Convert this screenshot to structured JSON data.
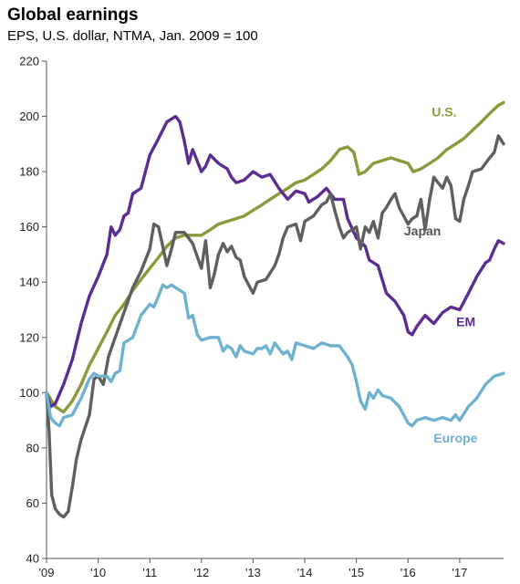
{
  "chart_data": {
    "type": "line",
    "title": "Global earnings",
    "subtitle": "EPS, U.S. dollar, NTMA, Jan. 2009 = 100",
    "xlabel": "",
    "ylabel": "",
    "xlim": [
      2009,
      2017.85
    ],
    "ylim": [
      40,
      220
    ],
    "y_ticks": [
      40,
      60,
      80,
      100,
      120,
      140,
      160,
      180,
      200,
      220
    ],
    "x_ticks": [
      {
        "value": 2009,
        "label": "'09"
      },
      {
        "value": 2010,
        "label": "'10"
      },
      {
        "value": 2011,
        "label": "'11"
      },
      {
        "value": 2012,
        "label": "'12"
      },
      {
        "value": 2013,
        "label": "'13"
      },
      {
        "value": 2014,
        "label": "'14"
      },
      {
        "value": 2015,
        "label": "'15"
      },
      {
        "value": 2016,
        "label": "'16"
      },
      {
        "value": 2017,
        "label": "'17"
      }
    ],
    "grid": false,
    "legend": "inline labels",
    "series": [
      {
        "name": "U.S.",
        "color": "#8a9a3b",
        "points": [
          [
            2009.0,
            100
          ],
          [
            2009.17,
            95
          ],
          [
            2009.33,
            93
          ],
          [
            2009.5,
            97
          ],
          [
            2009.67,
            103
          ],
          [
            2009.83,
            110
          ],
          [
            2010.0,
            116
          ],
          [
            2010.17,
            122
          ],
          [
            2010.33,
            128
          ],
          [
            2010.5,
            132
          ],
          [
            2010.67,
            137
          ],
          [
            2010.83,
            141
          ],
          [
            2011.0,
            145
          ],
          [
            2011.17,
            149
          ],
          [
            2011.33,
            153
          ],
          [
            2011.5,
            156
          ],
          [
            2011.67,
            157
          ],
          [
            2011.83,
            157
          ],
          [
            2012.0,
            157
          ],
          [
            2012.17,
            159
          ],
          [
            2012.33,
            161
          ],
          [
            2012.5,
            162
          ],
          [
            2012.67,
            163
          ],
          [
            2012.83,
            164
          ],
          [
            2013.0,
            166
          ],
          [
            2013.17,
            168
          ],
          [
            2013.33,
            170
          ],
          [
            2013.5,
            172
          ],
          [
            2013.67,
            174
          ],
          [
            2013.83,
            176
          ],
          [
            2014.0,
            177
          ],
          [
            2014.17,
            179
          ],
          [
            2014.33,
            181
          ],
          [
            2014.5,
            184
          ],
          [
            2014.67,
            188
          ],
          [
            2014.83,
            189
          ],
          [
            2014.95,
            187
          ],
          [
            2015.05,
            179
          ],
          [
            2015.17,
            180
          ],
          [
            2015.33,
            183
          ],
          [
            2015.5,
            184
          ],
          [
            2015.67,
            185
          ],
          [
            2015.83,
            184
          ],
          [
            2016.0,
            183
          ],
          [
            2016.1,
            180
          ],
          [
            2016.25,
            181
          ],
          [
            2016.42,
            183
          ],
          [
            2016.58,
            185
          ],
          [
            2016.75,
            188
          ],
          [
            2016.92,
            190
          ],
          [
            2017.08,
            192
          ],
          [
            2017.25,
            195
          ],
          [
            2017.42,
            198
          ],
          [
            2017.58,
            201
          ],
          [
            2017.75,
            204
          ],
          [
            2017.85,
            205
          ]
        ]
      },
      {
        "name": "EM",
        "color": "#5b2c91",
        "points": [
          [
            2009.0,
            100
          ],
          [
            2009.08,
            95
          ],
          [
            2009.17,
            96
          ],
          [
            2009.33,
            103
          ],
          [
            2009.5,
            112
          ],
          [
            2009.67,
            125
          ],
          [
            2009.83,
            135
          ],
          [
            2010.0,
            142
          ],
          [
            2010.17,
            150
          ],
          [
            2010.25,
            160
          ],
          [
            2010.33,
            157
          ],
          [
            2010.42,
            159
          ],
          [
            2010.5,
            164
          ],
          [
            2010.58,
            165
          ],
          [
            2010.67,
            172
          ],
          [
            2010.83,
            174
          ],
          [
            2011.0,
            186
          ],
          [
            2011.17,
            192
          ],
          [
            2011.33,
            198
          ],
          [
            2011.5,
            200
          ],
          [
            2011.58,
            198
          ],
          [
            2011.67,
            191
          ],
          [
            2011.75,
            183
          ],
          [
            2011.83,
            188
          ],
          [
            2012.0,
            180
          ],
          [
            2012.08,
            182
          ],
          [
            2012.17,
            186
          ],
          [
            2012.33,
            183
          ],
          [
            2012.5,
            181
          ],
          [
            2012.58,
            178
          ],
          [
            2012.67,
            176
          ],
          [
            2012.83,
            177
          ],
          [
            2013.0,
            180
          ],
          [
            2013.17,
            178
          ],
          [
            2013.33,
            179
          ],
          [
            2013.5,
            174
          ],
          [
            2013.67,
            170
          ],
          [
            2013.83,
            173
          ],
          [
            2014.0,
            172
          ],
          [
            2014.08,
            169
          ],
          [
            2014.25,
            171
          ],
          [
            2014.42,
            174
          ],
          [
            2014.58,
            170
          ],
          [
            2014.75,
            170
          ],
          [
            2014.83,
            163
          ],
          [
            2015.0,
            156
          ],
          [
            2015.17,
            153
          ],
          [
            2015.25,
            148
          ],
          [
            2015.42,
            146
          ],
          [
            2015.58,
            136
          ],
          [
            2015.75,
            133
          ],
          [
            2015.92,
            128
          ],
          [
            2016.0,
            122
          ],
          [
            2016.08,
            121
          ],
          [
            2016.17,
            124
          ],
          [
            2016.33,
            128
          ],
          [
            2016.5,
            125
          ],
          [
            2016.67,
            129
          ],
          [
            2016.83,
            131
          ],
          [
            2017.0,
            130
          ],
          [
            2017.17,
            136
          ],
          [
            2017.33,
            142
          ],
          [
            2017.5,
            147
          ],
          [
            2017.58,
            148
          ],
          [
            2017.67,
            152
          ],
          [
            2017.75,
            155
          ],
          [
            2017.85,
            154
          ]
        ]
      },
      {
        "name": "Japan",
        "color": "#5f5f5f",
        "points": [
          [
            2009.0,
            100
          ],
          [
            2009.05,
            86
          ],
          [
            2009.1,
            63
          ],
          [
            2009.17,
            58
          ],
          [
            2009.25,
            56
          ],
          [
            2009.33,
            55
          ],
          [
            2009.42,
            57
          ],
          [
            2009.5,
            66
          ],
          [
            2009.58,
            76
          ],
          [
            2009.67,
            83
          ],
          [
            2009.83,
            92
          ],
          [
            2009.92,
            105
          ],
          [
            2010.0,
            106
          ],
          [
            2010.1,
            103
          ],
          [
            2010.2,
            113
          ],
          [
            2010.33,
            120
          ],
          [
            2010.5,
            129
          ],
          [
            2010.67,
            138
          ],
          [
            2010.83,
            144
          ],
          [
            2011.0,
            152
          ],
          [
            2011.08,
            161
          ],
          [
            2011.17,
            160
          ],
          [
            2011.25,
            153
          ],
          [
            2011.33,
            146
          ],
          [
            2011.42,
            152
          ],
          [
            2011.5,
            158
          ],
          [
            2011.67,
            158
          ],
          [
            2011.83,
            154
          ],
          [
            2012.0,
            145
          ],
          [
            2012.08,
            155
          ],
          [
            2012.17,
            138
          ],
          [
            2012.25,
            143
          ],
          [
            2012.33,
            150
          ],
          [
            2012.42,
            154
          ],
          [
            2012.5,
            151
          ],
          [
            2012.58,
            153
          ],
          [
            2012.67,
            149
          ],
          [
            2012.75,
            148
          ],
          [
            2012.83,
            142
          ],
          [
            2013.0,
            136
          ],
          [
            2013.08,
            140
          ],
          [
            2013.25,
            141
          ],
          [
            2013.42,
            146
          ],
          [
            2013.5,
            150
          ],
          [
            2013.58,
            156
          ],
          [
            2013.67,
            160
          ],
          [
            2013.83,
            161
          ],
          [
            2013.92,
            155
          ],
          [
            2014.0,
            162
          ],
          [
            2014.17,
            164
          ],
          [
            2014.33,
            168
          ],
          [
            2014.42,
            169
          ],
          [
            2014.5,
            172
          ],
          [
            2014.58,
            166
          ],
          [
            2014.67,
            160
          ],
          [
            2014.75,
            156
          ],
          [
            2014.83,
            158
          ],
          [
            2015.0,
            160
          ],
          [
            2015.08,
            152
          ],
          [
            2015.17,
            160
          ],
          [
            2015.25,
            158
          ],
          [
            2015.33,
            162
          ],
          [
            2015.42,
            156
          ],
          [
            2015.5,
            165
          ],
          [
            2015.58,
            167
          ],
          [
            2015.67,
            170
          ],
          [
            2015.75,
            172
          ],
          [
            2015.83,
            167
          ],
          [
            2016.0,
            161
          ],
          [
            2016.08,
            163
          ],
          [
            2016.17,
            164
          ],
          [
            2016.25,
            170
          ],
          [
            2016.33,
            159
          ],
          [
            2016.42,
            170
          ],
          [
            2016.5,
            178
          ],
          [
            2016.58,
            176
          ],
          [
            2016.67,
            174
          ],
          [
            2016.75,
            178
          ],
          [
            2016.83,
            175
          ],
          [
            2016.92,
            163
          ],
          [
            2017.0,
            162
          ],
          [
            2017.08,
            170
          ],
          [
            2017.17,
            175
          ],
          [
            2017.25,
            180
          ],
          [
            2017.42,
            181
          ],
          [
            2017.58,
            185
          ],
          [
            2017.67,
            187
          ],
          [
            2017.75,
            193
          ],
          [
            2017.85,
            190
          ]
        ]
      },
      {
        "name": "Europe",
        "color": "#6fb1d0",
        "points": [
          [
            2009.0,
            100
          ],
          [
            2009.08,
            91
          ],
          [
            2009.17,
            89
          ],
          [
            2009.25,
            88
          ],
          [
            2009.33,
            91
          ],
          [
            2009.5,
            92
          ],
          [
            2009.67,
            98
          ],
          [
            2009.83,
            105
          ],
          [
            2009.92,
            107
          ],
          [
            2010.0,
            106
          ],
          [
            2010.17,
            106
          ],
          [
            2010.25,
            104
          ],
          [
            2010.33,
            107
          ],
          [
            2010.42,
            108
          ],
          [
            2010.5,
            118
          ],
          [
            2010.67,
            120
          ],
          [
            2010.83,
            128
          ],
          [
            2011.0,
            132
          ],
          [
            2011.08,
            131
          ],
          [
            2011.17,
            135
          ],
          [
            2011.25,
            139
          ],
          [
            2011.33,
            138
          ],
          [
            2011.42,
            139
          ],
          [
            2011.5,
            138
          ],
          [
            2011.67,
            136
          ],
          [
            2011.75,
            127
          ],
          [
            2011.83,
            128
          ],
          [
            2011.92,
            121
          ],
          [
            2012.0,
            119
          ],
          [
            2012.17,
            120
          ],
          [
            2012.33,
            120
          ],
          [
            2012.42,
            115
          ],
          [
            2012.5,
            117
          ],
          [
            2012.58,
            116
          ],
          [
            2012.67,
            113
          ],
          [
            2012.75,
            117
          ],
          [
            2012.83,
            115
          ],
          [
            2013.0,
            114
          ],
          [
            2013.08,
            116
          ],
          [
            2013.17,
            116
          ],
          [
            2013.25,
            117
          ],
          [
            2013.33,
            114
          ],
          [
            2013.42,
            118
          ],
          [
            2013.5,
            116
          ],
          [
            2013.58,
            114
          ],
          [
            2013.67,
            115
          ],
          [
            2013.75,
            112
          ],
          [
            2013.83,
            118
          ],
          [
            2014.0,
            117
          ],
          [
            2014.17,
            116
          ],
          [
            2014.33,
            118
          ],
          [
            2014.5,
            117
          ],
          [
            2014.67,
            117
          ],
          [
            2014.83,
            113
          ],
          [
            2014.92,
            110
          ],
          [
            2015.0,
            104
          ],
          [
            2015.08,
            97
          ],
          [
            2015.17,
            94
          ],
          [
            2015.25,
            100
          ],
          [
            2015.33,
            98
          ],
          [
            2015.42,
            101
          ],
          [
            2015.5,
            99
          ],
          [
            2015.67,
            98
          ],
          [
            2015.83,
            95
          ],
          [
            2016.0,
            89
          ],
          [
            2016.08,
            88
          ],
          [
            2016.17,
            90
          ],
          [
            2016.33,
            91
          ],
          [
            2016.5,
            90
          ],
          [
            2016.67,
            91
          ],
          [
            2016.83,
            90
          ],
          [
            2016.92,
            92
          ],
          [
            2017.0,
            90
          ],
          [
            2017.17,
            95
          ],
          [
            2017.33,
            98
          ],
          [
            2017.5,
            103
          ],
          [
            2017.67,
            106
          ],
          [
            2017.85,
            107
          ]
        ]
      }
    ],
    "labels": [
      {
        "series": "U.S.",
        "text": "U.S.",
        "x": 2016.7,
        "y": 200
      },
      {
        "series": "Japan",
        "text": "Japan",
        "x": 2016.28,
        "y": 157
      },
      {
        "series": "EM",
        "text": "EM",
        "x": 2017.12,
        "y": 124
      },
      {
        "series": "Europe",
        "text": "Europe",
        "x": 2016.92,
        "y": 82
      }
    ]
  }
}
